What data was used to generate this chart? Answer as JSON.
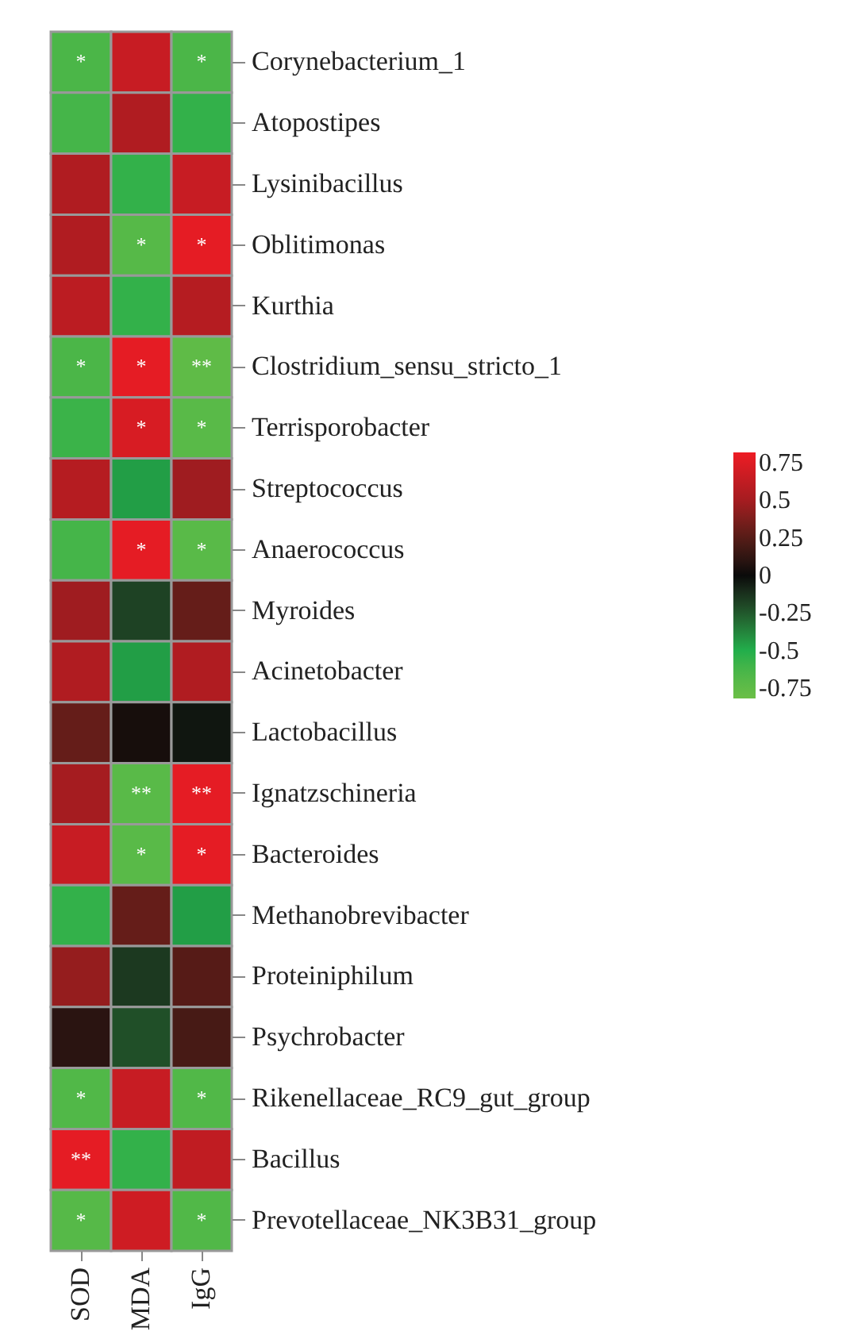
{
  "chart_data": {
    "type": "heatmap",
    "categories": [
      "SOD",
      "MDA",
      "IgG"
    ],
    "y_categories": [
      "Corynebacterium_1",
      "Atopostipes",
      "Lysinibacillus",
      "Oblitimonas",
      "Kurthia",
      "Clostridium_sensu_stricto_1",
      "Terrisporobacter",
      "Streptococcus",
      "Anaerococcus",
      "Myroides",
      "Acinetobacter",
      "Lactobacillus",
      "Ignatzschineria",
      "Bacteroides",
      "Methanobrevibacter",
      "Proteiniphilum",
      "Psychrobacter",
      "Rikenellaceae_RC9_gut_group",
      "Bacillus",
      "Prevotellaceae_NK3B31_group"
    ],
    "cells": [
      [
        -0.65,
        0.65,
        -0.65
      ],
      [
        -0.62,
        0.55,
        -0.55
      ],
      [
        0.55,
        -0.55,
        0.65
      ],
      [
        0.55,
        -0.7,
        0.78
      ],
      [
        0.6,
        -0.55,
        0.57
      ],
      [
        -0.65,
        0.78,
        -0.75
      ],
      [
        -0.58,
        0.72,
        -0.72
      ],
      [
        0.57,
        -0.45,
        0.48
      ],
      [
        -0.62,
        0.78,
        -0.72
      ],
      [
        0.48,
        -0.18,
        0.3
      ],
      [
        0.55,
        -0.45,
        0.55
      ],
      [
        0.3,
        0.03,
        -0.03
      ],
      [
        0.5,
        -0.72,
        0.78
      ],
      [
        0.65,
        -0.72,
        0.78
      ],
      [
        -0.55,
        0.3,
        -0.45
      ],
      [
        0.45,
        -0.15,
        0.25
      ],
      [
        0.1,
        -0.22,
        0.2
      ],
      [
        -0.68,
        0.65,
        -0.68
      ],
      [
        0.78,
        -0.55,
        0.62
      ],
      [
        -0.7,
        0.68,
        -0.68
      ]
    ],
    "cell_labels": [
      [
        "*",
        null,
        "*"
      ],
      [
        null,
        null,
        null
      ],
      [
        null,
        null,
        null
      ],
      [
        null,
        "*",
        "*"
      ],
      [
        null,
        null,
        null
      ],
      [
        "*",
        "*",
        "**"
      ],
      [
        null,
        "*",
        "*"
      ],
      [
        null,
        null,
        null
      ],
      [
        null,
        "*",
        "*"
      ],
      [
        null,
        null,
        null
      ],
      [
        null,
        null,
        null
      ],
      [
        null,
        null,
        null
      ],
      [
        null,
        "**",
        "**"
      ],
      [
        null,
        "*",
        "*"
      ],
      [
        null,
        null,
        null
      ],
      [
        null,
        null,
        null
      ],
      [
        null,
        null,
        null
      ],
      [
        "*",
        null,
        "*"
      ],
      [
        "**",
        null,
        null
      ],
      [
        "*",
        null,
        "*"
      ]
    ],
    "clim": [
      -0.82,
      0.82
    ],
    "cticks": [
      -0.75,
      -0.5,
      -0.25,
      0,
      0.25,
      0.5,
      0.75
    ]
  }
}
